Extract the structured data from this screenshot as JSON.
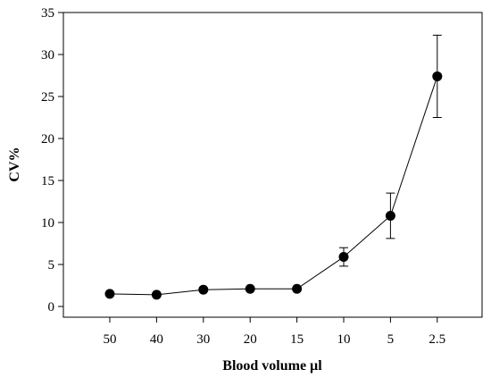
{
  "chart_data": {
    "type": "line",
    "title": "",
    "xlabel": "Blood volume µl",
    "ylabel": "CV%",
    "categories": [
      "50",
      "40",
      "30",
      "20",
      "15",
      "10",
      "5",
      "2.5"
    ],
    "series": [
      {
        "values": [
          1.5,
          1.4,
          2.0,
          2.1,
          2.1,
          5.9,
          10.8,
          27.4
        ],
        "error": [
          null,
          null,
          null,
          null,
          null,
          1.1,
          2.7,
          4.9
        ]
      }
    ],
    "ylim": [
      0,
      35
    ],
    "yticks": [
      "0",
      "5",
      "10",
      "15",
      "20",
      "25",
      "30",
      "35"
    ],
    "grid": false,
    "legend": "none",
    "colors": {
      "line": "#000000",
      "marker": "#000000",
      "axis": "#000000"
    }
  }
}
